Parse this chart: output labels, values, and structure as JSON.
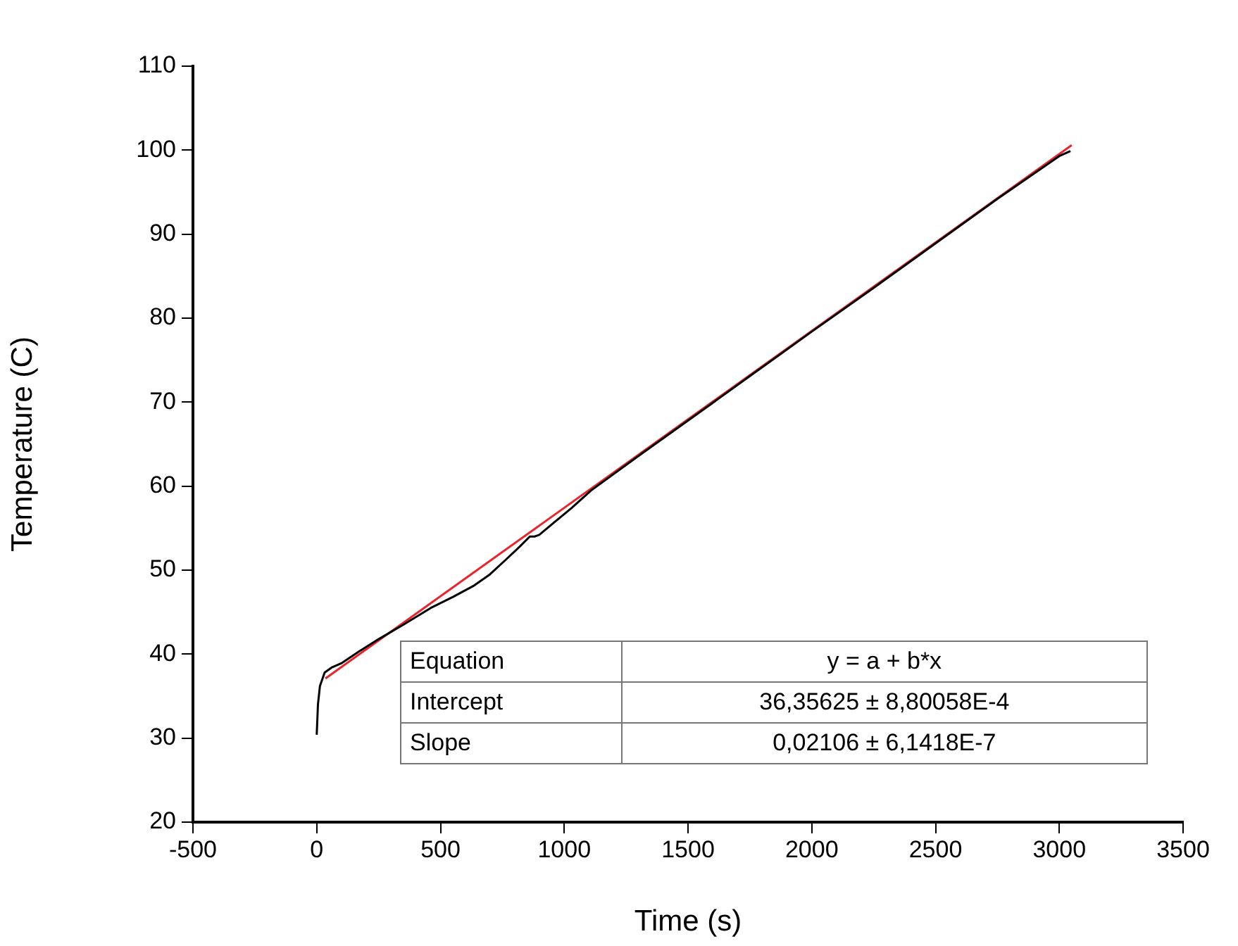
{
  "chart_data": {
    "type": "line",
    "xlabel": "Time (s)",
    "ylabel": "Temperature (C)",
    "xlim": [
      -500,
      3500
    ],
    "xticks": [
      -500,
      0,
      500,
      1000,
      1500,
      2000,
      2500,
      3000,
      3500
    ],
    "ylim": [
      20,
      110
    ],
    "yticks": [
      20,
      30,
      40,
      50,
      60,
      70,
      80,
      90,
      100,
      110
    ],
    "legend": false,
    "grid": false,
    "marker": "none",
    "line_style": "solid",
    "series": [
      {
        "color": "#000000",
        "x": [
          0,
          5,
          13,
          32,
          60,
          99,
          170,
          251,
          350,
          461,
          550,
          632,
          700,
          766,
          820,
          861,
          880,
          899,
          956,
          1030,
          1109,
          1300,
          1500,
          1750,
          2000,
          2250,
          2500,
          2750,
          3000,
          3045
        ],
        "values": [
          30.4,
          34.0,
          36.2,
          37.8,
          38.4,
          38.9,
          40.3,
          41.8,
          43.5,
          45.5,
          46.8,
          48.1,
          49.5,
          51.3,
          52.8,
          54.0,
          54.0,
          54.2,
          55.6,
          57.4,
          59.5,
          63.6,
          67.8,
          73.1,
          78.4,
          83.6,
          88.9,
          94.2,
          99.3,
          99.9
        ]
      },
      {
        "type": "line",
        "color": "#e8252a",
        "x": [
          35,
          3050
        ],
        "values": [
          37.1,
          100.6
        ]
      }
    ],
    "annotations": [
      "Equation",
      "y = a + b*x",
      "Intercept",
      "36,35625 ± 8,80058E-4",
      "Slope",
      "0,02106 ± 6,1418E-7"
    ]
  }
}
